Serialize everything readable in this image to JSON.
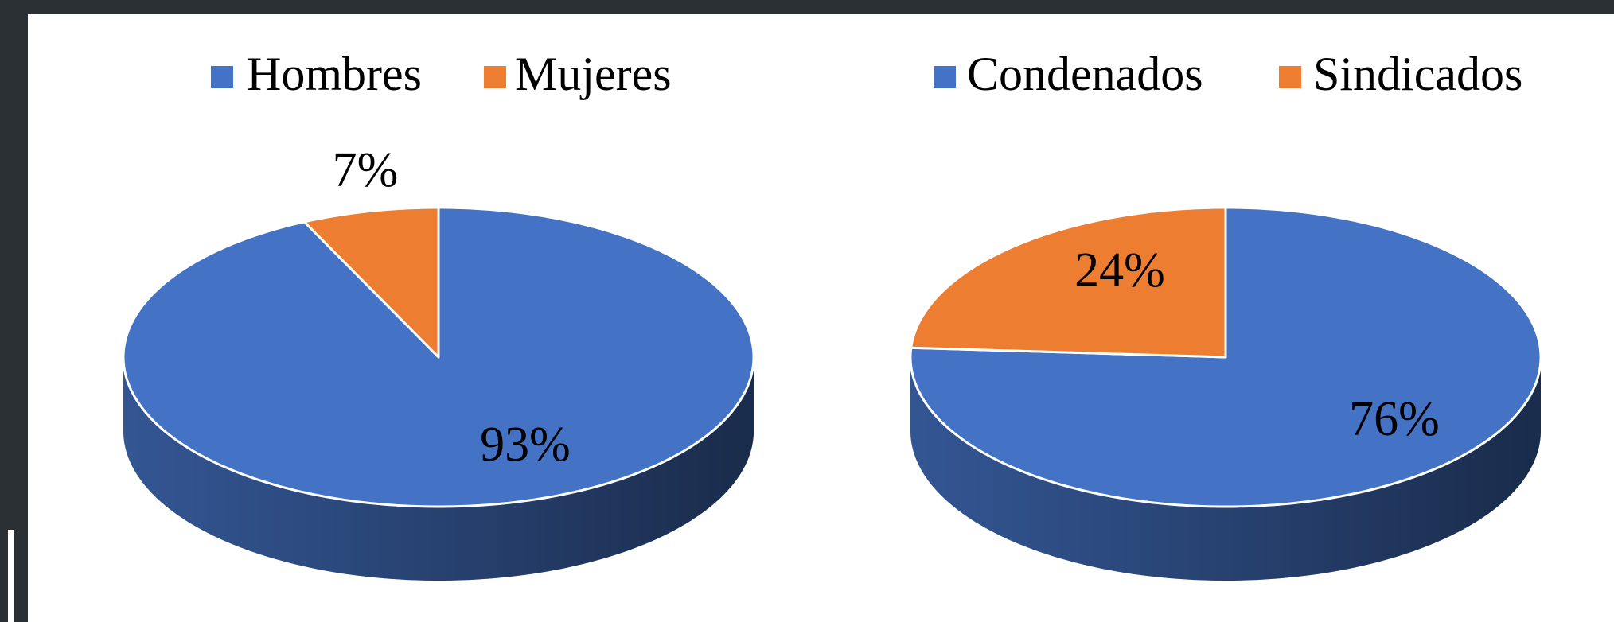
{
  "chart_data": [
    {
      "type": "pie3d",
      "categories": [
        "Hombres",
        "Mujeres"
      ],
      "values": [
        93,
        7
      ],
      "value_labels": [
        "93%",
        "7%"
      ],
      "colors": [
        "#4472c4",
        "#ed7d31"
      ],
      "legend": "top"
    },
    {
      "type": "pie3d",
      "categories": [
        "Condenados",
        "Sindicados"
      ],
      "values": [
        76,
        24
      ],
      "value_labels": [
        "76%",
        "24%"
      ],
      "colors": [
        "#4472c4",
        "#ed7d31"
      ],
      "legend": "top"
    }
  ]
}
